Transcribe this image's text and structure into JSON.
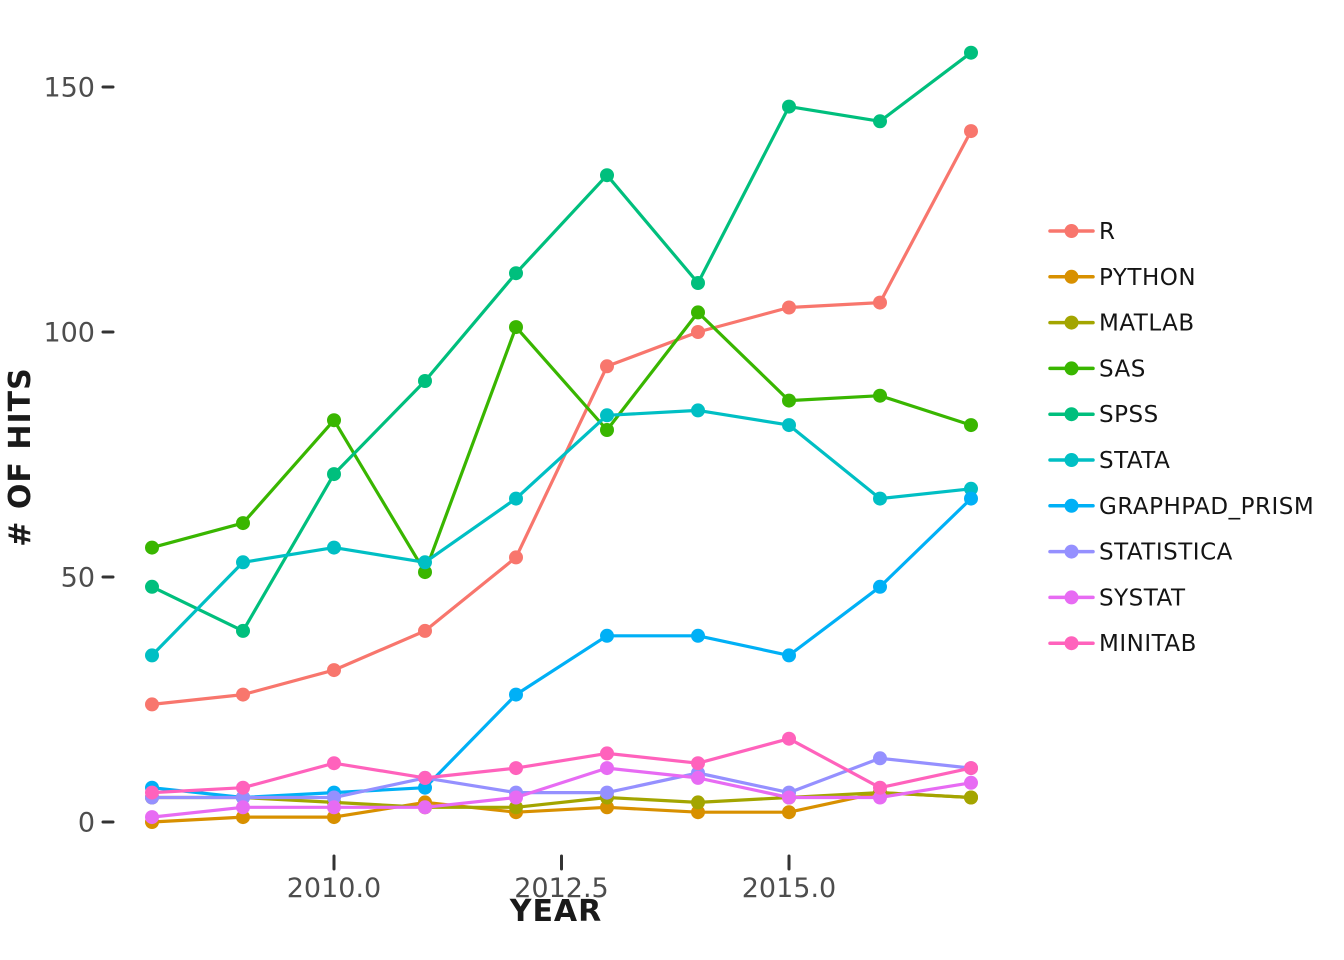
{
  "figure": {
    "background": "#ffffff",
    "grid": false,
    "axis_line": "none"
  },
  "style": {
    "tick_label_color": "#4d4d4d",
    "tick_mark_color": "#333333",
    "axis_title_color": "#1a1a1a",
    "legend_label_color": "#141414",
    "line_width": 3.2,
    "point_radius": 7
  },
  "chart_data": {
    "type": "line",
    "xlabel": "YEAR",
    "ylabel": "# OF HITS",
    "x": [
      2008,
      2009,
      2010,
      2011,
      2012,
      2013,
      2014,
      2015,
      2016,
      2017
    ],
    "xlim": [
      2007.55,
      2017.45
    ],
    "ylim": [
      -4,
      168
    ],
    "x_ticks": {
      "values": [
        2010,
        2012.5,
        2015
      ],
      "labels": [
        "2010.0",
        "2012.5",
        "2015.0"
      ]
    },
    "y_ticks": {
      "values": [
        0,
        50,
        100,
        150
      ],
      "labels": [
        "0",
        "50",
        "100",
        "150"
      ]
    },
    "grid": false,
    "legend_position": "right",
    "series": [
      {
        "name": "R",
        "color": "#F8766D",
        "values": [
          24,
          26,
          31,
          39,
          54,
          93,
          100,
          105,
          106,
          141
        ]
      },
      {
        "name": "PYTHON",
        "color": "#D89000",
        "values": [
          0,
          1,
          1,
          4,
          2,
          3,
          2,
          2,
          6,
          5
        ]
      },
      {
        "name": "MATLAB",
        "color": "#A3A500",
        "values": [
          5,
          5,
          4,
          3,
          3,
          5,
          4,
          5,
          6,
          5
        ]
      },
      {
        "name": "SAS",
        "color": "#39B600",
        "values": [
          56,
          61,
          82,
          51,
          101,
          80,
          104,
          86,
          87,
          81
        ]
      },
      {
        "name": "SPSS",
        "color": "#00BF7D",
        "values": [
          48,
          39,
          71,
          90,
          112,
          132,
          110,
          146,
          143,
          157
        ]
      },
      {
        "name": "STATA",
        "color": "#00BFC4",
        "values": [
          34,
          53,
          56,
          53,
          66,
          83,
          84,
          81,
          66,
          68
        ]
      },
      {
        "name": "GRAPHPAD_PRISM",
        "color": "#00B0F6",
        "values": [
          7,
          5,
          6,
          7,
          26,
          38,
          38,
          34,
          48,
          66
        ]
      },
      {
        "name": "STATISTICA",
        "color": "#9590FF",
        "values": [
          5,
          5,
          5,
          9,
          6,
          6,
          10,
          6,
          13,
          11
        ]
      },
      {
        "name": "SYSTAT",
        "color": "#E76BF3",
        "values": [
          1,
          3,
          3,
          3,
          5,
          11,
          9,
          5,
          5,
          8
        ]
      },
      {
        "name": "MINITAB",
        "color": "#FF62BC",
        "values": [
          6,
          7,
          12,
          9,
          11,
          14,
          12,
          17,
          7,
          11
        ]
      }
    ]
  },
  "legend": {
    "position": "right",
    "entries": [
      "R",
      "PYTHON",
      "MATLAB",
      "SAS",
      "SPSS",
      "STATA",
      "GRAPHPAD_PRISM",
      "STATISTICA",
      "SYSTAT",
      "MINITAB"
    ]
  }
}
